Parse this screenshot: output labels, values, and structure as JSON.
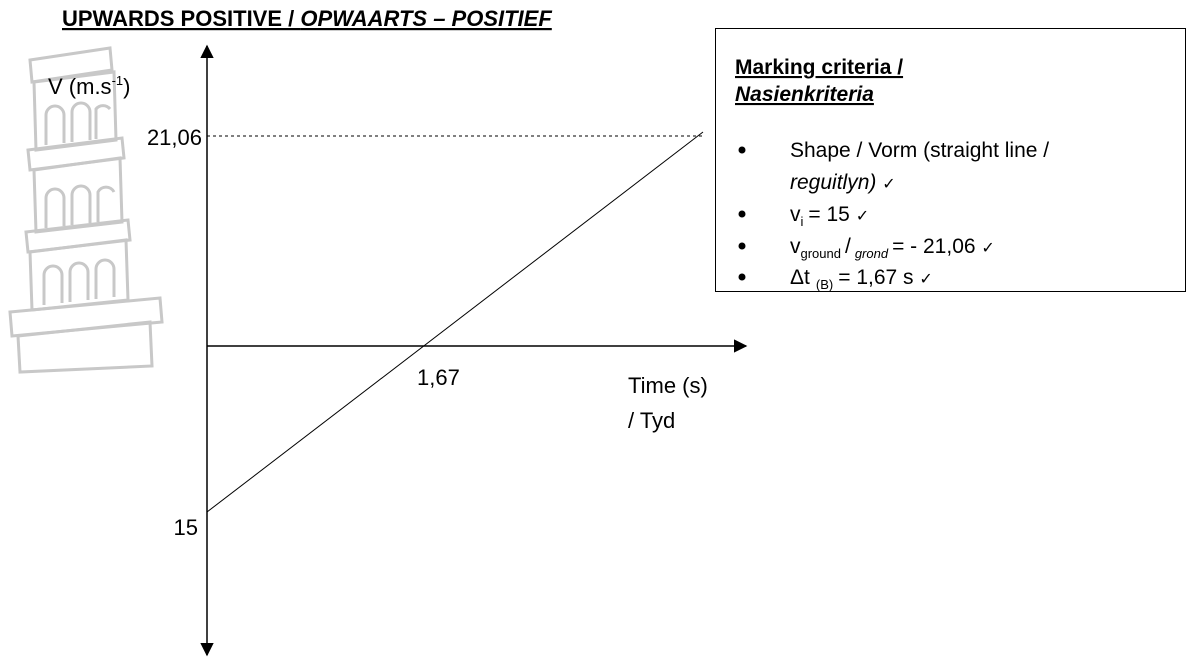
{
  "heading": {
    "text": "UPWARDS POSITIVE / ",
    "italic": "OPWAARTS – POSITIEF"
  },
  "graph": {
    "y_label": {
      "text": "V (m.s",
      "sup": "-1",
      "end": ")"
    },
    "y_marks": [
      "21,06",
      "15"
    ],
    "x_mark": "1,67",
    "x_label": [
      "Time (s)",
      "/ Tyd"
    ]
  },
  "criteria": {
    "title": "Marking criteria /",
    "title_italic": "Nasienkriteria",
    "items": [
      {
        "text": "Shape / Vorm (straight line /",
        "italic": "reguitlyn)",
        "tick": "✓"
      },
      {
        "symbol": "v",
        "sub": "i",
        "text": "= 15",
        "tick": "✓"
      },
      {
        "symbol": "v",
        "sub": "ground",
        "sep": "/",
        "sub_italic": "grond",
        "text": "= - 21,06",
        "tick": "✓"
      },
      {
        "symbol": "Δt",
        "sub": "(B)",
        "text": "= 1,67 s",
        "tick": "✓"
      }
    ]
  }
}
